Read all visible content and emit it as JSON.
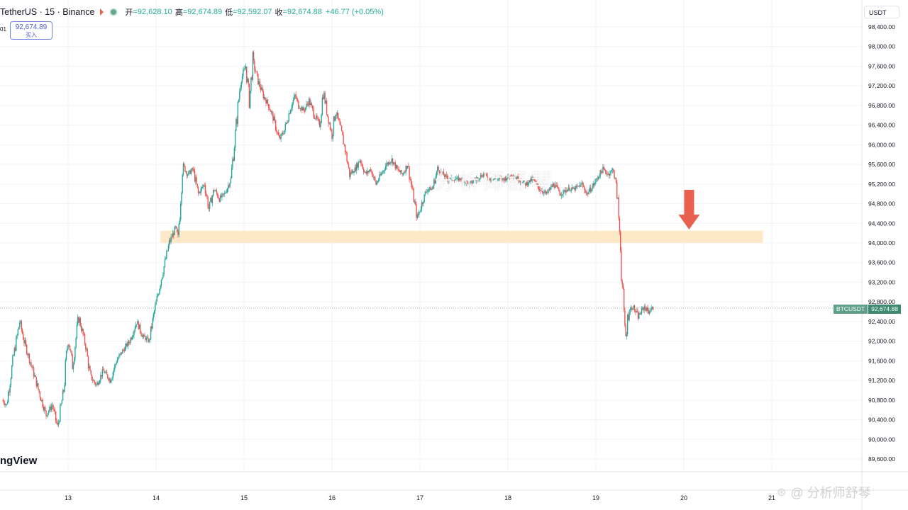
{
  "header": {
    "symbol": "TetherUS · 15 · Binance",
    "open_label": "开",
    "open": "=92,628.10",
    "high_label": "高",
    "high": "=92,674.89",
    "low_label": "低",
    "low": "=92,592.07",
    "close_label": "收",
    "close": "=92,674.88",
    "change": "+46.77 (+0.05%)",
    "truncated_text": "01"
  },
  "buy_box": {
    "price": "92,674.89",
    "label": "买入"
  },
  "currency": "USDT",
  "logo_text": "ngView",
  "ticker": {
    "name": "BTCUSDT",
    "price": "92,674.88"
  },
  "watermark": {
    "center": "分析师舒琴",
    "corner": "@ 分析师舒琴"
  },
  "colors": {
    "up": "#26a69a",
    "down": "#ef5350",
    "zone": "#fde8c8",
    "arrow": "#e8614f",
    "tag": "#3e8a71"
  },
  "chart_data": {
    "type": "candlestick",
    "symbol": "BTCUSDT",
    "interval": "15",
    "ylim": [
      89400,
      98600
    ],
    "y_ticks": [
      98400,
      98000,
      97600,
      97200,
      96800,
      96400,
      96000,
      95600,
      95200,
      94800,
      94400,
      94000,
      93600,
      93200,
      92800,
      92400,
      92000,
      91600,
      91200,
      90800,
      90400,
      90000,
      89600
    ],
    "x_ticks": [
      "13",
      "14",
      "15",
      "16",
      "17",
      "18",
      "19",
      "20",
      "21"
    ],
    "x_range_days": [
      12.25,
      21.1
    ],
    "last_price": 92674.88,
    "zone": {
      "from_day": 14.05,
      "to_day": 20.9,
      "low": 94000,
      "high": 94250
    },
    "arrow": {
      "day": 20.06,
      "direction": "down"
    },
    "path": [
      [
        12.25,
        90800
      ],
      [
        12.3,
        90700
      ],
      [
        12.38,
        91700
      ],
      [
        12.45,
        92400
      ],
      [
        12.5,
        92000
      ],
      [
        12.6,
        91400
      ],
      [
        12.68,
        90900
      ],
      [
        12.75,
        90500
      ],
      [
        12.82,
        90700
      ],
      [
        12.88,
        90250
      ],
      [
        12.95,
        91000
      ],
      [
        13.0,
        92100
      ],
      [
        13.05,
        91500
      ],
      [
        13.12,
        92500
      ],
      [
        13.2,
        91900
      ],
      [
        13.25,
        91300
      ],
      [
        13.32,
        91100
      ],
      [
        13.4,
        91400
      ],
      [
        13.48,
        91200
      ],
      [
        13.55,
        91600
      ],
      [
        13.62,
        91800
      ],
      [
        13.7,
        92000
      ],
      [
        13.78,
        92400
      ],
      [
        13.85,
        92100
      ],
      [
        13.92,
        92000
      ],
      [
        13.98,
        92600
      ],
      [
        14.05,
        93200
      ],
      [
        14.15,
        94000
      ],
      [
        14.22,
        94300
      ],
      [
        14.25,
        94100
      ],
      [
        14.3,
        95600
      ],
      [
        14.36,
        95400
      ],
      [
        14.42,
        95500
      ],
      [
        14.48,
        95000
      ],
      [
        14.55,
        95200
      ],
      [
        14.6,
        94700
      ],
      [
        14.66,
        95100
      ],
      [
        14.72,
        94900
      ],
      [
        14.78,
        95000
      ],
      [
        14.85,
        95300
      ],
      [
        14.9,
        96200
      ],
      [
        14.96,
        97300
      ],
      [
        15.02,
        97600
      ],
      [
        15.06,
        96900
      ],
      [
        15.1,
        97700
      ],
      [
        15.16,
        97300
      ],
      [
        15.22,
        97000
      ],
      [
        15.28,
        96800
      ],
      [
        15.34,
        96500
      ],
      [
        15.4,
        96100
      ],
      [
        15.46,
        96300
      ],
      [
        15.52,
        96700
      ],
      [
        15.58,
        97000
      ],
      [
        15.62,
        96800
      ],
      [
        15.68,
        96700
      ],
      [
        15.74,
        96900
      ],
      [
        15.8,
        96600
      ],
      [
        15.86,
        96400
      ],
      [
        15.9,
        97100
      ],
      [
        15.95,
        96600
      ],
      [
        16.0,
        96200
      ],
      [
        16.04,
        96700
      ],
      [
        16.1,
        96300
      ],
      [
        16.15,
        95900
      ],
      [
        16.2,
        95400
      ],
      [
        16.26,
        95500
      ],
      [
        16.32,
        95700
      ],
      [
        16.38,
        95400
      ],
      [
        16.44,
        95500
      ],
      [
        16.5,
        95200
      ],
      [
        16.56,
        95400
      ],
      [
        16.62,
        95600
      ],
      [
        16.68,
        95700
      ],
      [
        16.74,
        95500
      ],
      [
        16.8,
        95400
      ],
      [
        16.86,
        95600
      ],
      [
        16.92,
        95000
      ],
      [
        16.97,
        94500
      ],
      [
        17.02,
        94800
      ],
      [
        17.08,
        95100
      ],
      [
        17.14,
        95100
      ],
      [
        17.2,
        95500
      ],
      [
        17.26,
        95400
      ],
      [
        17.32,
        95300
      ],
      [
        17.4,
        95300
      ],
      [
        17.48,
        95300
      ],
      [
        17.56,
        95200
      ],
      [
        17.64,
        95300
      ],
      [
        17.72,
        95400
      ],
      [
        17.8,
        95300
      ],
      [
        17.88,
        95300
      ],
      [
        17.96,
        95300
      ],
      [
        18.04,
        95400
      ],
      [
        18.12,
        95300
      ],
      [
        18.2,
        95200
      ],
      [
        18.28,
        95300
      ],
      [
        18.36,
        95100
      ],
      [
        18.44,
        95000
      ],
      [
        18.52,
        95200
      ],
      [
        18.6,
        95000
      ],
      [
        18.68,
        95100
      ],
      [
        18.76,
        95100
      ],
      [
        18.84,
        95200
      ],
      [
        18.9,
        95000
      ],
      [
        18.98,
        95200
      ],
      [
        19.04,
        95400
      ],
      [
        19.08,
        95500
      ],
      [
        19.14,
        95400
      ],
      [
        19.2,
        95500
      ],
      [
        19.24,
        95000
      ],
      [
        19.28,
        94000
      ],
      [
        19.31,
        92700
      ],
      [
        19.34,
        92100
      ],
      [
        19.37,
        92600
      ],
      [
        19.42,
        92700
      ],
      [
        19.48,
        92500
      ],
      [
        19.55,
        92700
      ],
      [
        19.6,
        92600
      ],
      [
        19.65,
        92674.88
      ]
    ]
  }
}
